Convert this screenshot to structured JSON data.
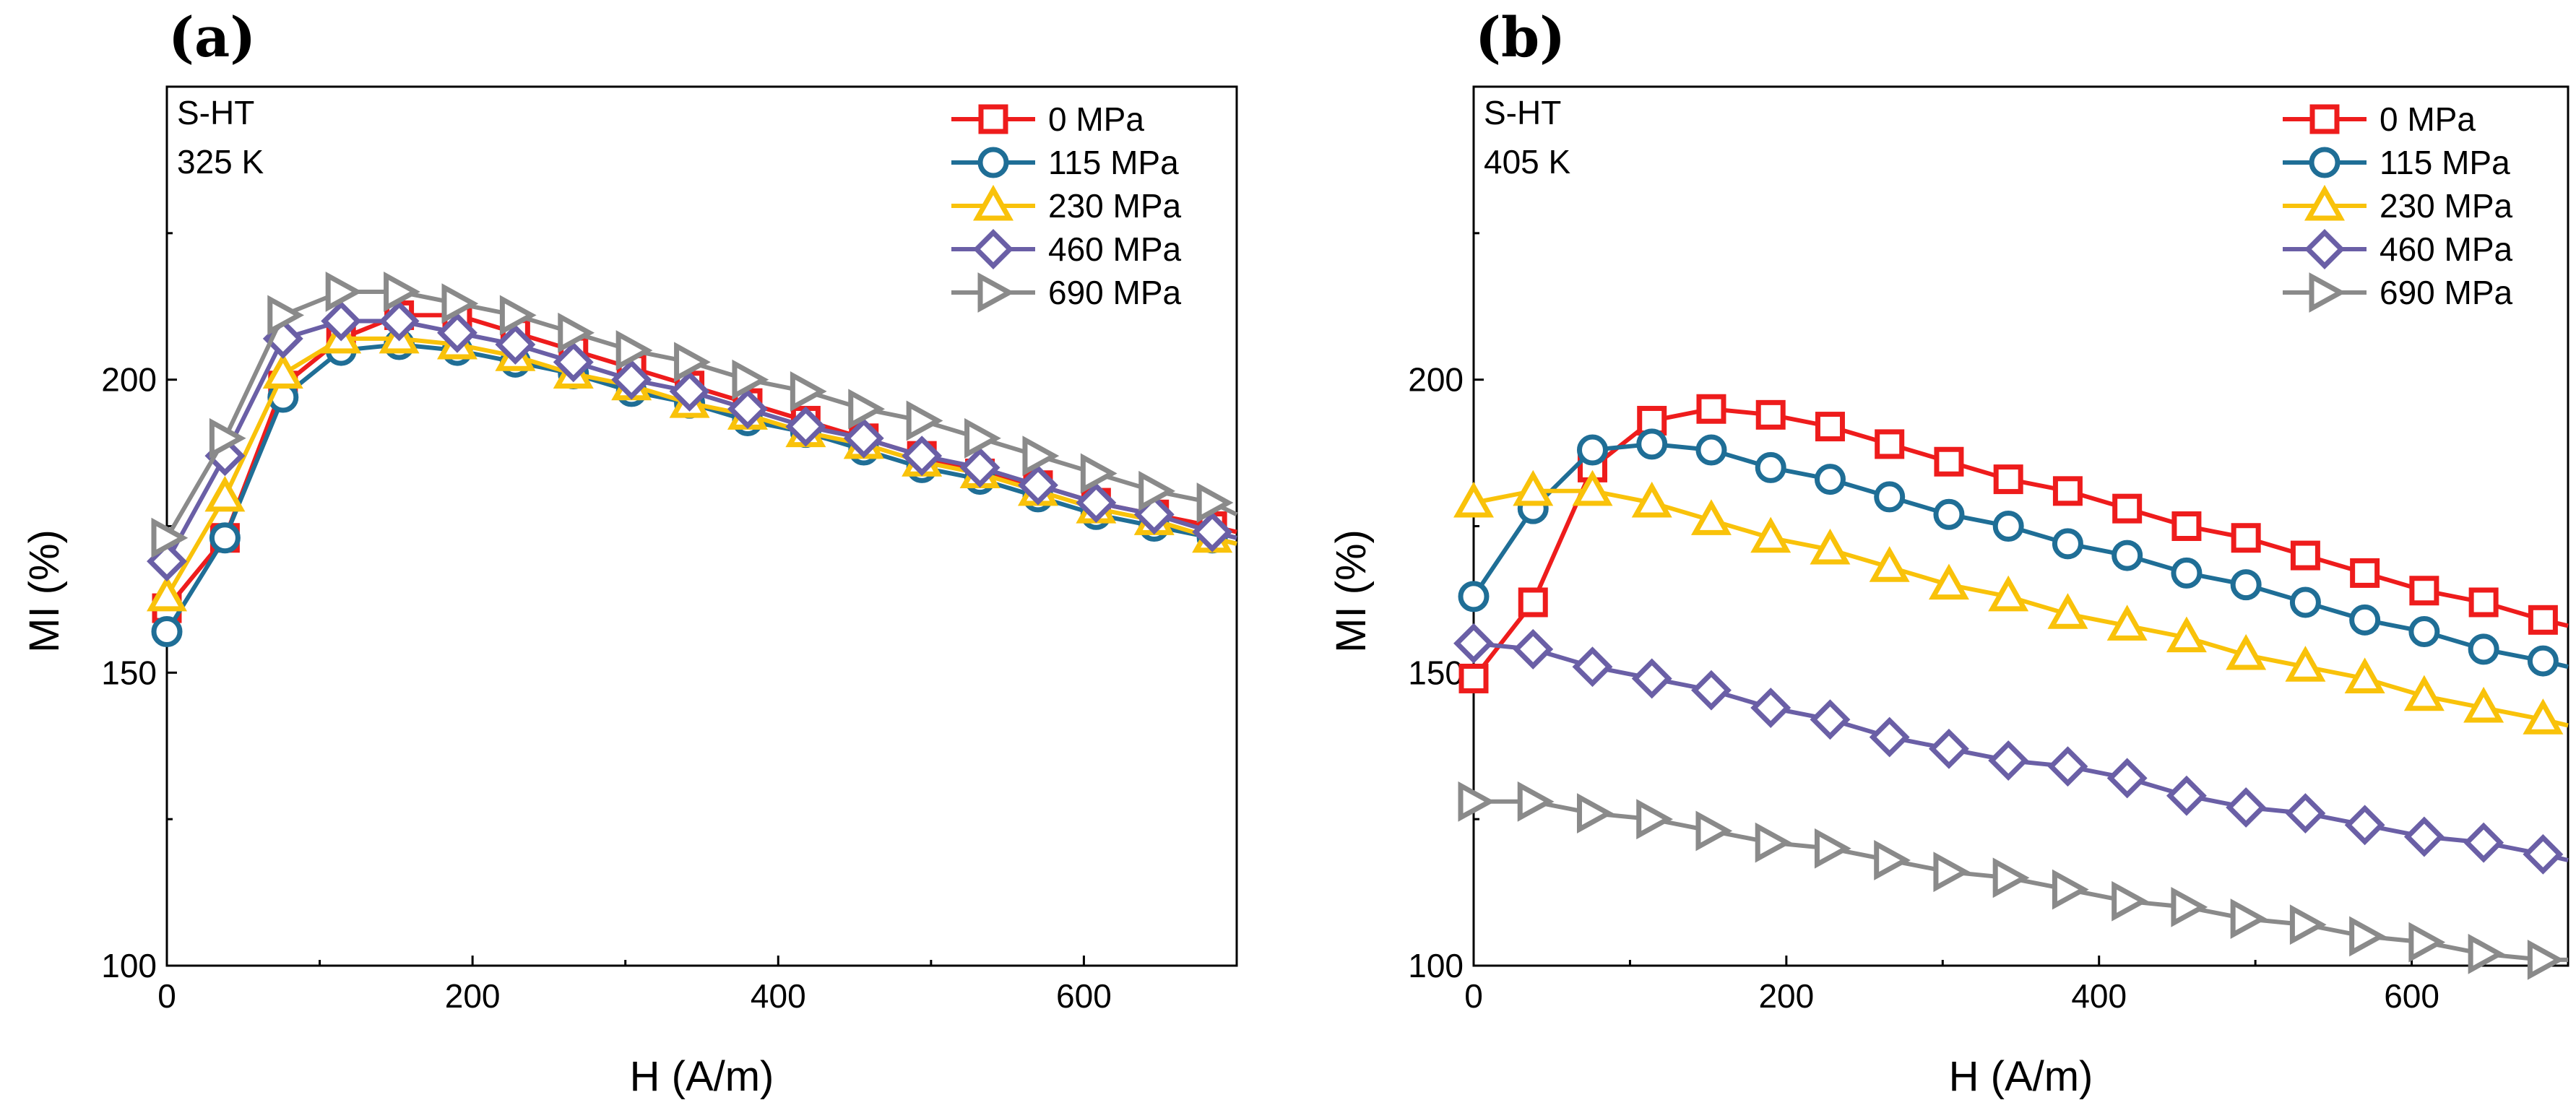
{
  "chart_data": [
    {
      "type": "line",
      "panel": "(a)",
      "annotation": [
        "S-HT",
        "325 K"
      ],
      "xlabel": "H (A/m)",
      "ylabel": "MI (%)",
      "xlim": [
        0,
        700
      ],
      "ylim": [
        100,
        250
      ],
      "xticks": [
        0,
        200,
        400,
        600
      ],
      "yticks": [
        100,
        150,
        200
      ],
      "legend_position": "top-right",
      "x": [
        0,
        38,
        76,
        114,
        152,
        190,
        228,
        266,
        304,
        342,
        380,
        418,
        456,
        494,
        532,
        570,
        608,
        646,
        684,
        700
      ],
      "series": [
        {
          "name": "0 MPa",
          "color": "#ee1c1c",
          "marker": "square",
          "values": [
            161,
            173,
            199,
            207,
            211,
            211,
            208,
            205,
            202,
            199,
            196,
            193,
            190,
            187,
            184,
            182,
            179,
            177,
            175,
            174
          ]
        },
        {
          "name": "115 MPa",
          "color": "#1f6e96",
          "marker": "circle",
          "values": [
            157,
            173,
            197,
            205,
            206,
            205,
            203,
            201,
            198,
            196,
            193,
            191,
            188,
            185,
            183,
            180,
            177,
            175,
            173,
            172
          ]
        },
        {
          "name": "230 MPa",
          "color": "#f9c20a",
          "marker": "triangle-up",
          "values": [
            163,
            180,
            201,
            207,
            207,
            206,
            204,
            201,
            199,
            196,
            194,
            191,
            189,
            186,
            184,
            181,
            178,
            176,
            173,
            172
          ]
        },
        {
          "name": "460 MPa",
          "color": "#6a5fa6",
          "marker": "diamond",
          "values": [
            169,
            187,
            207,
            210,
            210,
            208,
            206,
            203,
            200,
            198,
            195,
            192,
            190,
            187,
            185,
            182,
            179,
            177,
            174,
            173
          ]
        },
        {
          "name": "690 MPa",
          "color": "#8a8a8a",
          "marker": "triangle-right",
          "values": [
            173,
            190,
            211,
            215,
            215,
            213,
            211,
            208,
            205,
            203,
            200,
            198,
            195,
            193,
            190,
            187,
            184,
            181,
            179,
            177
          ]
        }
      ]
    },
    {
      "type": "line",
      "panel": "(b)",
      "annotation": [
        "S-HT",
        "405 K"
      ],
      "xlabel": "H (A/m)",
      "ylabel": "MI (%)",
      "xlim": [
        0,
        700
      ],
      "ylim": [
        100,
        250
      ],
      "xticks": [
        0,
        200,
        400,
        600
      ],
      "yticks": [
        100,
        150,
        200
      ],
      "legend_position": "top-right",
      "x": [
        0,
        38,
        76,
        114,
        152,
        190,
        228,
        266,
        304,
        342,
        380,
        418,
        456,
        494,
        532,
        570,
        608,
        646,
        684,
        700
      ],
      "series": [
        {
          "name": "0 MPa",
          "color": "#ee1c1c",
          "marker": "square",
          "values": [
            149,
            162,
            185,
            193,
            195,
            194,
            192,
            189,
            186,
            183,
            181,
            178,
            175,
            173,
            170,
            167,
            164,
            162,
            159,
            158
          ]
        },
        {
          "name": "115 MPa",
          "color": "#1f6e96",
          "marker": "circle",
          "values": [
            163,
            178,
            188,
            189,
            188,
            185,
            183,
            180,
            177,
            175,
            172,
            170,
            167,
            165,
            162,
            159,
            157,
            154,
            152,
            151
          ]
        },
        {
          "name": "230 MPa",
          "color": "#f9c20a",
          "marker": "triangle-up",
          "values": [
            179,
            181,
            181,
            179,
            176,
            173,
            171,
            168,
            165,
            163,
            160,
            158,
            156,
            153,
            151,
            149,
            146,
            144,
            142,
            141
          ]
        },
        {
          "name": "460 MPa",
          "color": "#6a5fa6",
          "marker": "diamond",
          "values": [
            155,
            154,
            151,
            149,
            147,
            144,
            142,
            139,
            137,
            135,
            134,
            132,
            129,
            127,
            126,
            124,
            122,
            121,
            119,
            118
          ]
        },
        {
          "name": "690 MPa",
          "color": "#8a8a8a",
          "marker": "triangle-right",
          "values": [
            128,
            128,
            126,
            125,
            123,
            121,
            120,
            118,
            116,
            115,
            113,
            111,
            110,
            108,
            107,
            105,
            104,
            102,
            101,
            101
          ]
        }
      ]
    }
  ]
}
